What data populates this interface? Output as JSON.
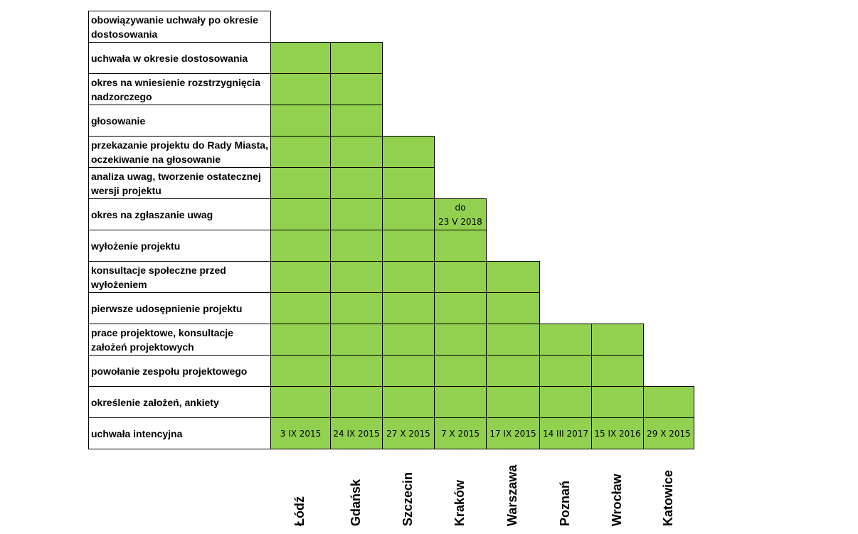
{
  "chart_data": {
    "type": "table",
    "rows": [
      "obowiązywanie uchwały po okresie dostosowania",
      "uchwała w okresie dostosowania",
      "okres na wniesienie rozstrzygnięcia  nadzorczego",
      "głosowanie",
      "przekazanie projektu do Rady Miasta, oczekiwanie na głosowanie",
      "analiza uwag, tworzenie ostatecznej wersji projektu",
      "okres na zgłaszanie uwag",
      "wyłożenie projektu",
      "konsultacje społeczne przed wyłożeniem",
      "pierwsze udosępnienie projektu",
      "prace projektowe, konsultacje założeń projektowych",
      "powołanie zespołu projektowego",
      "określenie założeń, ankiety",
      "uchwała intencyjna"
    ],
    "cities": [
      {
        "name": "Łódź",
        "date": "3 IX 2015",
        "stages_completed": 13
      },
      {
        "name": "Gdańsk",
        "date": "24 IX  2015",
        "stages_completed": 13
      },
      {
        "name": "Szczecin",
        "date": "27 X 2015",
        "stages_completed": 10
      },
      {
        "name": "Kraków",
        "date": "7 X 2015",
        "stages_completed": 8,
        "note": "do\n23 V 2018"
      },
      {
        "name": "Warszawa",
        "date": "17 IX 2015",
        "stages_completed": 6
      },
      {
        "name": "Poznań",
        "date": "14 III 2017",
        "stages_completed": 4
      },
      {
        "name": "Wrocław",
        "date": "15 IX 2016",
        "stages_completed": 4
      },
      {
        "name": "Katowice",
        "date": "29 X 2015",
        "stages_completed": 2
      }
    ],
    "fill_color": "#92D050",
    "border_color": "#000000"
  }
}
